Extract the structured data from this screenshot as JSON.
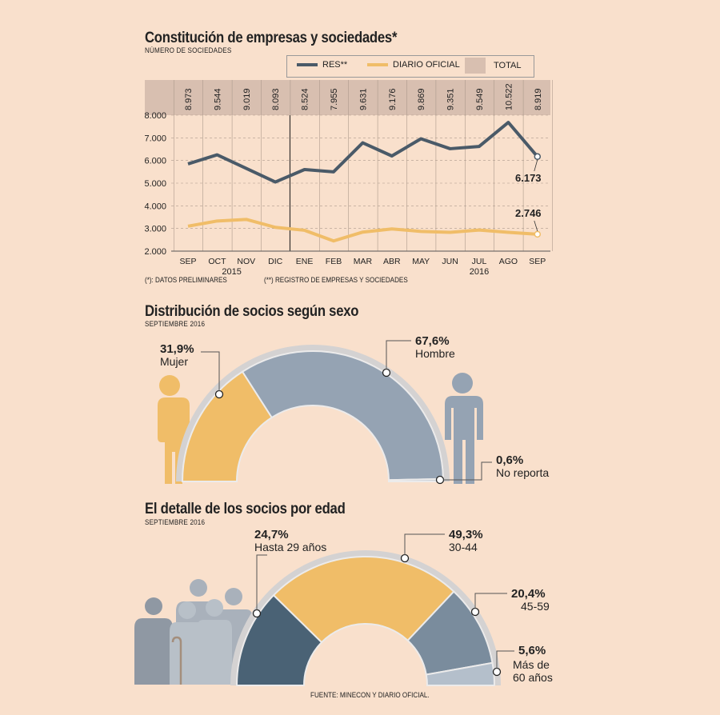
{
  "section1": {
    "title": "Constitución de empresas y sociedades*",
    "subtitle": "NÚMERO DE SOCIEDADES",
    "legend": {
      "res": "RES**",
      "diario": "DIARIO OFICIAL",
      "total": "TOTAL"
    },
    "note_prelim": "(*): DATOS PRELIMINARES",
    "note_res": "(**) REGISTRO DE EMPRESAS Y SOCIEDADES",
    "label_res_last": "6.173",
    "label_diario_last": "2.746"
  },
  "section2": {
    "title": "Distribución de socios según sexo",
    "subtitle": "SEPTIEMBRE 2016",
    "mujer_pct": "31,9%",
    "mujer_label": "Mujer",
    "hombre_pct": "67,6%",
    "hombre_label": "Hombre",
    "noreporta_pct": "0,6%",
    "noreporta_label": "No reporta"
  },
  "section3": {
    "title": "El detalle de los socios por edad",
    "subtitle": "SEPTIEMBRE 2016",
    "g1_pct": "24,7%",
    "g1_label": "Hasta 29 años",
    "g2_pct": "49,3%",
    "g2_label": "30-44",
    "g3_pct": "20,4%",
    "g3_label": "45-59",
    "g4_pct": "5,6%",
    "g4_label_1": "Más de",
    "g4_label_2": "60 años"
  },
  "source": "FUENTE: MINECON Y DIARIO OFICIAL.",
  "colors": {
    "res": "#4a5a68",
    "diario": "#f0bd68",
    "total": "#d8bfb0",
    "grid": "#b8a89c",
    "hombre": "#95a3b3",
    "mujer": "#f0bd68"
  },
  "chart_data": [
    {
      "type": "line",
      "title": "Constitución de empresas y sociedades*",
      "categories": [
        "SEP",
        "OCT",
        "NOV",
        "DIC",
        "ENE",
        "FEB",
        "MAR",
        "ABR",
        "MAY",
        "JUN",
        "JUL",
        "AGO",
        "SEP"
      ],
      "year_labels": [
        "2015",
        "2016"
      ],
      "totals": [
        "8.973",
        "9.544",
        "9.019",
        "8.093",
        "8.524",
        "7.955",
        "9.631",
        "9.176",
        "9.869",
        "9.351",
        "9.549",
        "10.522",
        "8.919"
      ],
      "yticks": [
        "2.000",
        "3.000",
        "4.000",
        "5.000",
        "6.000",
        "7.000",
        "8.000"
      ],
      "ylim": [
        2000,
        8000
      ],
      "series": [
        {
          "name": "RES**",
          "values": [
            5850,
            6250,
            5650,
            5050,
            5600,
            5500,
            6780,
            6200,
            6960,
            6520,
            6620,
            7680,
            6173
          ]
        },
        {
          "name": "DIARIO OFICIAL",
          "values": [
            3100,
            3330,
            3400,
            3050,
            2920,
            2450,
            2840,
            2980,
            2870,
            2830,
            2930,
            2830,
            2746
          ]
        }
      ]
    },
    {
      "type": "pie",
      "title": "Distribución de socios según sexo",
      "labels": [
        "Mujer",
        "Hombre",
        "No reporta"
      ],
      "values": [
        31.9,
        67.6,
        0.6
      ]
    },
    {
      "type": "pie",
      "title": "El detalle de los socios por edad",
      "labels": [
        "Hasta 29 años",
        "30-44",
        "45-59",
        "Más de 60 años"
      ],
      "values": [
        24.7,
        49.3,
        20.4,
        5.6
      ]
    }
  ]
}
